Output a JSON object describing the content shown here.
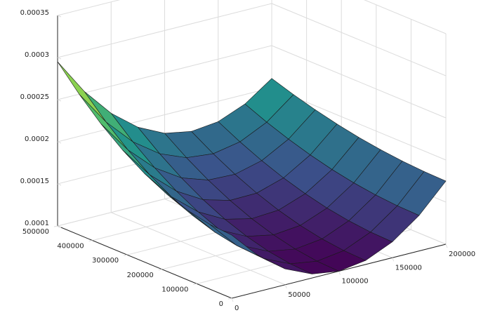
{
  "chart_data": {
    "type": "surface",
    "x": [
      0,
      25000,
      50000,
      75000,
      100000,
      125000,
      150000,
      175000,
      200000
    ],
    "y": [
      0,
      62500,
      125000,
      187500,
      250000,
      312500,
      375000,
      437500,
      500000
    ],
    "z": [
      [
        0.000175,
        0.0001422,
        0.0001188,
        0.0001047,
        0.0001,
        0.0001047,
        0.0001188,
        0.0001422,
        0.000175
      ],
      [
        0.0001769,
        0.0001439,
        0.0001204,
        0.0001061,
        0.0001012,
        0.0001058,
        0.0001197,
        0.0001429,
        0.0001756
      ],
      [
        0.0001825,
        0.000149,
        0.000125,
        0.0001102,
        0.0001049,
        0.0001089,
        0.0001224,
        0.0001451,
        0.0001773
      ],
      [
        0.0001919,
        0.0001576,
        0.0001327,
        0.0001172,
        0.000111,
        0.0001142,
        0.0001268,
        0.0001487,
        0.0001801
      ],
      [
        0.000205,
        0.0001696,
        0.0001436,
        0.0001268,
        0.0001195,
        0.0001216,
        0.0001331,
        0.0001538,
        0.000184
      ],
      [
        0.0002219,
        0.000185,
        0.0001575,
        0.0001393,
        0.0001305,
        0.0001311,
        0.0001411,
        0.0001604,
        0.0001891
      ],
      [
        0.0002425,
        0.0002038,
        0.0001745,
        0.0001545,
        0.0001439,
        0.0001427,
        0.0001509,
        0.0001684,
        0.0001953
      ],
      [
        0.0002669,
        0.0002261,
        0.0001946,
        0.0001725,
        0.0001597,
        0.0001564,
        0.0001625,
        0.0001778,
        0.0002026
      ],
      [
        0.000295,
        0.0002517,
        0.0002178,
        0.0001932,
        0.000178,
        0.0001722,
        0.0001758,
        0.0001887,
        0.000211
      ]
    ],
    "xlim": [
      0,
      200000
    ],
    "xticks": [
      0,
      50000,
      100000,
      150000,
      200000
    ],
    "ylim": [
      0,
      500000
    ],
    "yticks": [
      0,
      100000,
      200000,
      300000,
      400000,
      500000
    ],
    "zlim": [
      0.0001,
      0.00035
    ],
    "zticks": [
      0.0001,
      0.00015,
      0.0002,
      0.00025,
      0.0003,
      0.00035
    ],
    "colormap": "viridis",
    "grid": true
  }
}
